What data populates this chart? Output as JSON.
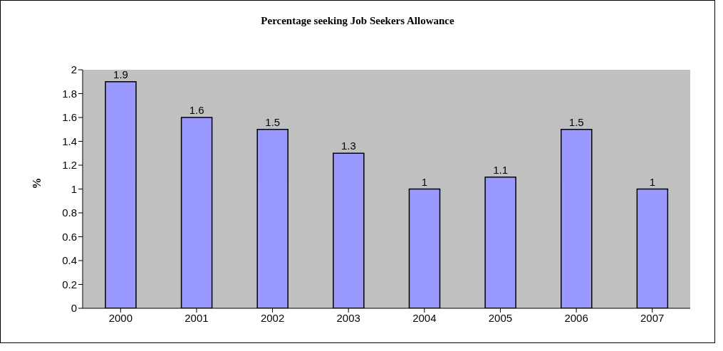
{
  "chart_data": {
    "type": "bar",
    "title": "Percentage seeking Job Seekers Allowance",
    "ylabel": "%",
    "categories": [
      "2000",
      "2001",
      "2002",
      "2003",
      "2004",
      "2005",
      "2006",
      "2007"
    ],
    "values": [
      1.9,
      1.6,
      1.5,
      1.3,
      1,
      1.1,
      1.5,
      1
    ],
    "color": "#9999ff",
    "ylim": [
      0,
      2
    ],
    "yticks": [
      0,
      0.2,
      0.4,
      0.6,
      0.8,
      1,
      1.2,
      1.4,
      1.6,
      1.8,
      2
    ],
    "grid": false,
    "data_labels": true
  }
}
